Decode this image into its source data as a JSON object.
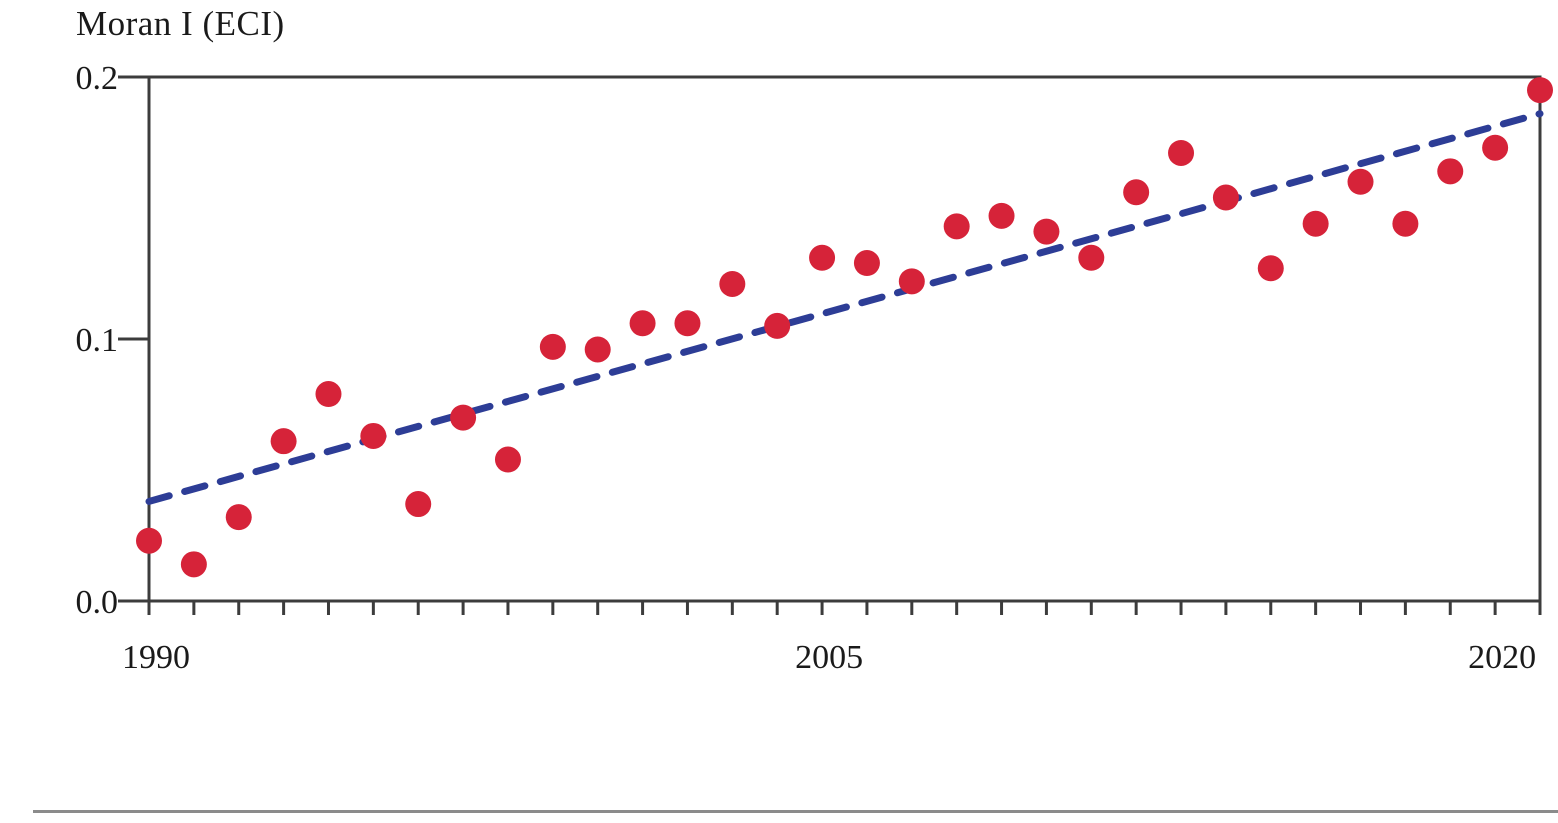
{
  "chart_data": {
    "type": "scatter",
    "title": "Moran I (ECI)",
    "ylabel": "Moran I (ECI)",
    "xlabel": "",
    "x": [
      1990,
      1991,
      1992,
      1993,
      1994,
      1995,
      1996,
      1997,
      1998,
      1999,
      2000,
      2001,
      2002,
      2003,
      2004,
      2005,
      2006,
      2007,
      2008,
      2009,
      2010,
      2011,
      2012,
      2013,
      2014,
      2015,
      2016,
      2017,
      2018,
      2019,
      2020,
      2021
    ],
    "series": [
      {
        "name": "Moran I (ECI)",
        "values": [
          0.023,
          0.014,
          0.032,
          0.061,
          0.079,
          0.063,
          0.037,
          0.07,
          0.054,
          0.097,
          0.096,
          0.106,
          0.106,
          0.121,
          0.105,
          0.131,
          0.129,
          0.122,
          0.143,
          0.147,
          0.141,
          0.131,
          0.156,
          0.171,
          0.154,
          0.127,
          0.144,
          0.16,
          0.144,
          0.164,
          0.173,
          0.195
        ]
      }
    ],
    "trend": {
      "type": "linear-dashed",
      "x": [
        1990,
        2021
      ],
      "values": [
        0.038,
        0.186
      ]
    },
    "xlim": [
      1990,
      2021
    ],
    "ylim": [
      0,
      0.2
    ],
    "x_tick_years": [
      1990,
      2005,
      2020
    ],
    "x_tick_labels": [
      "1990",
      "2005",
      "2020"
    ],
    "y_ticks": [
      0,
      0.1,
      0.2
    ],
    "y_tick_labels": [
      "0.0",
      "0.1",
      "0.2"
    ],
    "grid": false,
    "legend": "none",
    "point_color": "#D62339",
    "trend_color": "#2D3D96",
    "axis_color": "#3C3C3C",
    "label_color": "#1a1a1a"
  },
  "footer": {
    "divider_color": "#8B8B8B"
  }
}
